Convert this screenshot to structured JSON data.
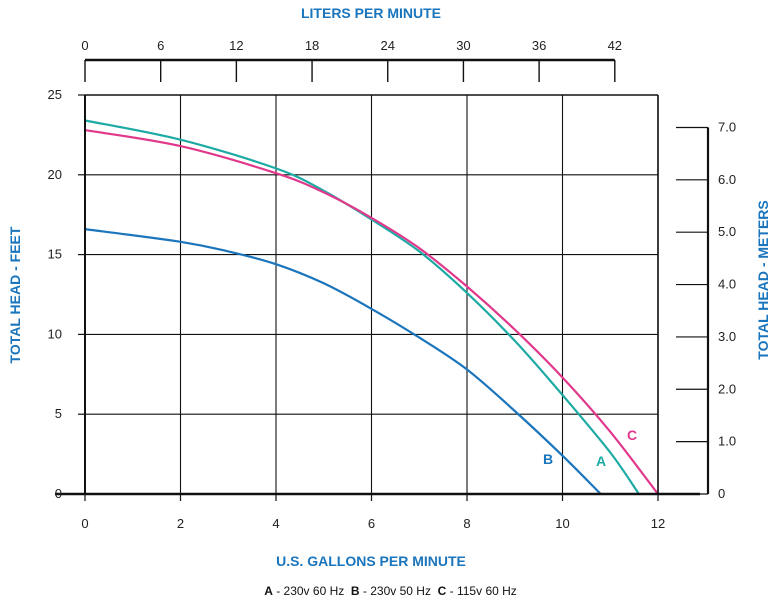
{
  "chart_data": {
    "type": "line",
    "title": "",
    "xlabel": "U.S. GALLONS PER MINUTE",
    "ylabel": "TOTAL HEAD - FEET",
    "top_axis_label": "LITERS PER MINUTE",
    "right_axis_label": "TOTAL HEAD - METERS",
    "xlim": [
      0,
      12
    ],
    "ylim": [
      0,
      25
    ],
    "x_ticks": [
      "0",
      "2",
      "4",
      "6",
      "8",
      "10",
      "12"
    ],
    "y_ticks": [
      "0",
      "5",
      "10",
      "15",
      "20",
      "25"
    ],
    "top_ticks": [
      {
        "lpm": 0,
        "label": "0"
      },
      {
        "lpm": 6,
        "label": "6"
      },
      {
        "lpm": 12,
        "label": "12"
      },
      {
        "lpm": 18,
        "label": "18"
      },
      {
        "lpm": 24,
        "label": "24"
      },
      {
        "lpm": 30,
        "label": "30"
      },
      {
        "lpm": 36,
        "label": "36"
      },
      {
        "lpm": 42,
        "label": "42"
      }
    ],
    "right_ticks": [
      {
        "m": 0,
        "label": "0"
      },
      {
        "m": 1,
        "label": "1.0"
      },
      {
        "m": 2,
        "label": "2.0"
      },
      {
        "m": 3,
        "label": "3.0"
      },
      {
        "m": 4,
        "label": "4.0"
      },
      {
        "m": 5,
        "label": "5.0"
      },
      {
        "m": 6,
        "label": "6.0"
      },
      {
        "m": 7,
        "label": "7.0"
      }
    ],
    "grid": true,
    "series": [
      {
        "name": "A",
        "color": "#1eaaa4",
        "x": [
          0,
          2,
          4,
          5,
          6,
          7,
          8,
          9,
          10,
          11,
          11.6
        ],
        "y": [
          23.4,
          22.2,
          20.4,
          19.0,
          17.2,
          15.2,
          12.6,
          9.6,
          6.2,
          2.6,
          0
        ]
      },
      {
        "name": "B",
        "color": "#1a75bc",
        "x": [
          0,
          2,
          3,
          4,
          5,
          6,
          7,
          8,
          9,
          10,
          10.8
        ],
        "y": [
          16.6,
          15.8,
          15.2,
          14.4,
          13.2,
          11.6,
          9.8,
          7.8,
          5.2,
          2.4,
          0
        ]
      },
      {
        "name": "C",
        "color": "#e0398c",
        "x": [
          0,
          2,
          4,
          5,
          6,
          7,
          8,
          9,
          10,
          11,
          12
        ],
        "y": [
          22.8,
          21.8,
          20.1,
          18.9,
          17.3,
          15.4,
          13.0,
          10.3,
          7.3,
          3.9,
          0
        ]
      }
    ],
    "curve_labels": [
      {
        "text": "A",
        "color": "#1eaaa4"
      },
      {
        "text": "B",
        "color": "#1a75bc"
      },
      {
        "text": "C",
        "color": "#e0398c"
      }
    ]
  },
  "legend": {
    "a_key": "A",
    "a_text": " - 230v 60 Hz",
    "b_key": "B",
    "b_text": " - 230v 50 Hz",
    "c_key": "C",
    "c_text": " - 115v 60 Hz"
  }
}
